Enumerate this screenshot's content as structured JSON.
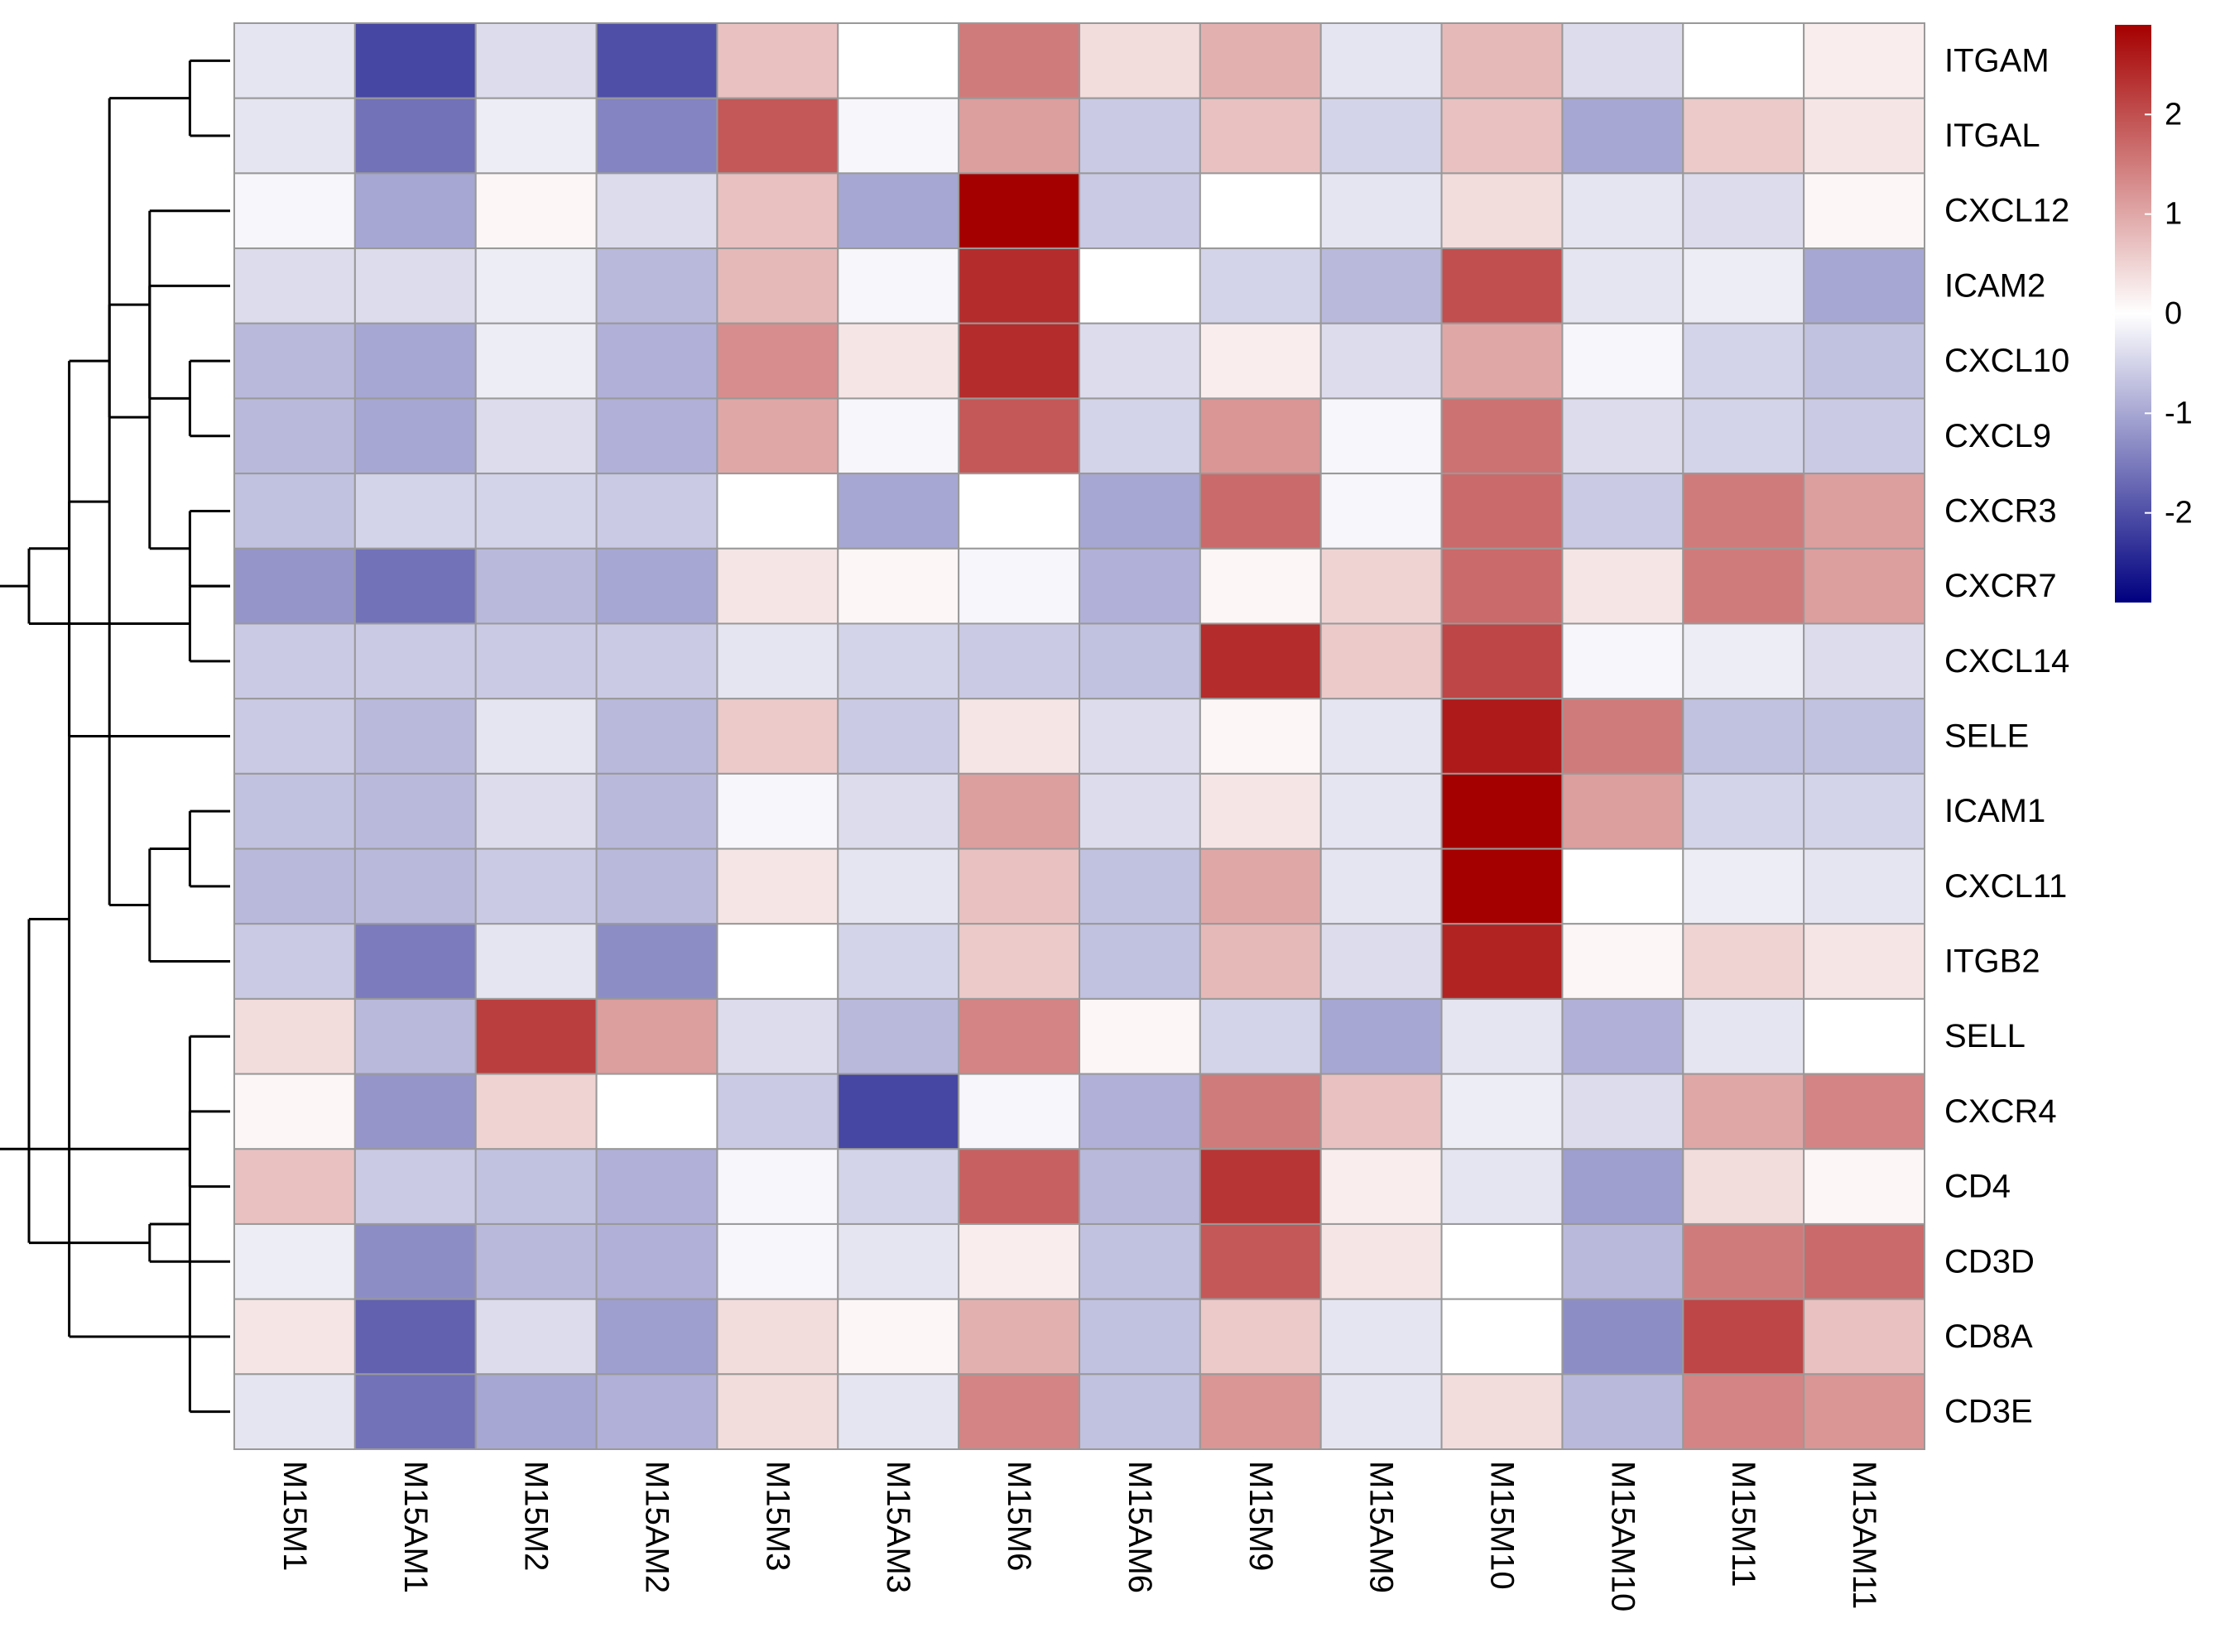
{
  "colors": {
    "low": "#000080",
    "mid": "#ffffff",
    "high": "#a50000",
    "cell_border": "#999999",
    "dendrogram": "#000000"
  },
  "chart_data": {
    "type": "heatmap",
    "title": "",
    "columns": [
      "M15M1",
      "M15AM1",
      "M15M2",
      "M15AM2",
      "M15M3",
      "M15AM3",
      "M15M6",
      "M15AM6",
      "M15M9",
      "M15AM9",
      "M15M10",
      "M15AM10",
      "M15M11",
      "M15AM11"
    ],
    "rows": [
      "ITGAM",
      "ITGAL",
      "CXCL12",
      "ICAM2",
      "CXCL10",
      "CXCL9",
      "CXCR3",
      "CXCR7",
      "CXCL14",
      "SELE",
      "ICAM1",
      "CXCL11",
      "ITGB2",
      "SELL",
      "CXCR4",
      "CD4",
      "CD3D",
      "CD8A",
      "CD3E"
    ],
    "values": [
      [
        -0.3,
        -2.1,
        -0.4,
        -2.0,
        0.7,
        0.0,
        1.5,
        0.4,
        0.9,
        -0.3,
        0.8,
        -0.4,
        0.0,
        0.2
      ],
      [
        -0.3,
        -1.6,
        -0.2,
        -1.4,
        1.9,
        -0.1,
        1.1,
        -0.6,
        0.7,
        -0.5,
        0.7,
        -1.0,
        0.6,
        0.3
      ],
      [
        -0.1,
        -1.0,
        0.1,
        -0.4,
        0.7,
        -1.0,
        2.9,
        -0.6,
        0.0,
        -0.3,
        0.4,
        -0.3,
        -0.4,
        0.1
      ],
      [
        -0.4,
        -0.4,
        -0.2,
        -0.8,
        0.8,
        -0.1,
        2.4,
        0.0,
        -0.5,
        -0.8,
        2.0,
        -0.3,
        -0.2,
        -1.0
      ],
      [
        -0.8,
        -1.0,
        -0.2,
        -0.9,
        1.3,
        0.3,
        2.4,
        -0.4,
        0.2,
        -0.4,
        1.0,
        -0.1,
        -0.5,
        -0.7
      ],
      [
        -0.8,
        -1.0,
        -0.4,
        -0.9,
        1.0,
        -0.1,
        1.9,
        -0.5,
        1.2,
        -0.1,
        1.6,
        -0.4,
        -0.5,
        -0.6
      ],
      [
        -0.7,
        -0.5,
        -0.5,
        -0.6,
        0.0,
        -1.0,
        0.0,
        -1.0,
        1.7,
        -0.1,
        1.7,
        -0.6,
        1.5,
        1.1
      ],
      [
        -1.2,
        -1.6,
        -0.8,
        -1.0,
        0.3,
        0.1,
        -0.1,
        -0.9,
        0.1,
        0.5,
        1.7,
        0.3,
        1.5,
        1.1
      ],
      [
        -0.6,
        -0.6,
        -0.6,
        -0.6,
        -0.3,
        -0.5,
        -0.6,
        -0.7,
        2.4,
        0.6,
        2.1,
        -0.1,
        -0.2,
        -0.4
      ],
      [
        -0.6,
        -0.8,
        -0.3,
        -0.8,
        0.6,
        -0.6,
        0.3,
        -0.4,
        0.1,
        -0.3,
        2.6,
        1.5,
        -0.7,
        -0.7
      ],
      [
        -0.7,
        -0.8,
        -0.4,
        -0.8,
        -0.1,
        -0.4,
        1.1,
        -0.4,
        0.3,
        -0.3,
        2.9,
        1.1,
        -0.5,
        -0.5
      ],
      [
        -0.8,
        -0.8,
        -0.6,
        -0.8,
        0.3,
        -0.3,
        0.7,
        -0.7,
        1.0,
        -0.3,
        2.9,
        0.0,
        -0.2,
        -0.3
      ],
      [
        -0.6,
        -1.5,
        -0.3,
        -1.3,
        0.0,
        -0.5,
        0.6,
        -0.7,
        0.8,
        -0.4,
        2.5,
        0.1,
        0.5,
        0.3
      ],
      [
        0.4,
        -0.8,
        2.2,
        1.1,
        -0.4,
        -0.8,
        1.4,
        0.1,
        -0.5,
        -1.0,
        -0.3,
        -0.9,
        -0.3,
        0.0
      ],
      [
        0.1,
        -1.2,
        0.5,
        0.0,
        -0.6,
        -2.1,
        -0.1,
        -0.9,
        1.5,
        0.7,
        -0.2,
        -0.4,
        1.0,
        1.4
      ],
      [
        0.7,
        -0.6,
        -0.7,
        -0.9,
        -0.1,
        -0.5,
        1.8,
        -0.8,
        2.3,
        0.2,
        -0.3,
        -1.1,
        0.4,
        0.1
      ],
      [
        -0.2,
        -1.3,
        -0.8,
        -0.9,
        -0.1,
        -0.3,
        0.2,
        -0.7,
        1.9,
        0.3,
        0.0,
        -0.8,
        1.5,
        1.7
      ],
      [
        0.3,
        -1.8,
        -0.4,
        -1.1,
        0.4,
        0.1,
        0.9,
        -0.7,
        0.6,
        -0.3,
        0.0,
        -1.3,
        2.1,
        0.7
      ],
      [
        -0.3,
        -1.6,
        -1.0,
        -0.9,
        0.4,
        -0.3,
        1.4,
        -0.7,
        1.2,
        -0.3,
        0.4,
        -0.8,
        1.4,
        1.2
      ]
    ],
    "color_scale": {
      "min": -2.9,
      "max": 2.9,
      "ticks": [
        2,
        1,
        0,
        -1,
        -2
      ],
      "tick_labels": [
        "2",
        "1",
        "0",
        "-1",
        "-2"
      ],
      "position": "right"
    },
    "row_dendrogram": {
      "side": "left",
      "merges": [
        [
          7,
          8
        ],
        [
          6,
          7
        ],
        [
          4,
          5
        ],
        [
          3,
          20
        ],
        [
          2,
          21
        ],
        [
          0,
          1
        ],
        [
          23,
          22
        ],
        [
          10,
          11
        ],
        [
          9,
          25
        ],
        [
          26,
          12
        ],
        [
          19,
          27
        ],
        [
          13,
          18
        ],
        [
          28,
          24
        ],
        [
          14,
          15
        ],
        [
          30,
          16
        ],
        [
          31,
          17
        ],
        [
          32,
          29
        ],
        [
          33,
          34
        ]
      ]
    }
  }
}
